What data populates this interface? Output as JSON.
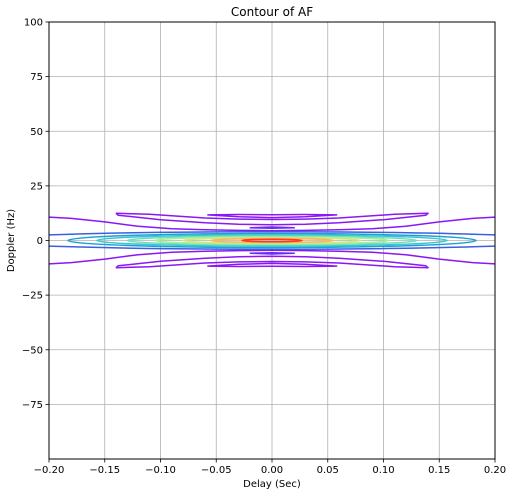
{
  "chart_data": {
    "type": "contour",
    "title": "Contour of AF",
    "xlabel": "Delay (Sec)",
    "ylabel": "Doppler (Hz)",
    "xlim": [
      -0.2,
      0.2
    ],
    "ylim": [
      -100,
      100
    ],
    "x_ticks": [
      -0.2,
      -0.15,
      -0.1,
      -0.05,
      0.0,
      0.05,
      0.1,
      0.15,
      0.2
    ],
    "x_tick_labels": [
      "−0.20",
      "−0.15",
      "−0.10",
      "−0.05",
      "0.00",
      "0.05",
      "0.10",
      "0.15",
      "0.20"
    ],
    "y_ticks": [
      -75,
      -50,
      -25,
      0,
      25,
      50,
      75,
      100
    ],
    "y_tick_labels": [
      "−75",
      "−50",
      "−25",
      "0",
      "25",
      "50",
      "75",
      "100"
    ],
    "grid": true,
    "colormap": "rainbow",
    "center_lobe": [
      {
        "half_width": 0.26,
        "half_height": 4.0,
        "color": "#3a5fe0"
      },
      {
        "half_width": 0.183,
        "half_height": 3.2,
        "color": "#1e9fd6"
      },
      {
        "half_width": 0.157,
        "half_height": 2.6,
        "color": "#38c6cf"
      },
      {
        "half_width": 0.13,
        "half_height": 2.0,
        "color": "#6de0bb"
      },
      {
        "half_width": 0.105,
        "half_height": 1.6,
        "color": "#a4f09c"
      },
      {
        "half_width": 0.08,
        "half_height": 1.2,
        "color": "#d2e87e"
      },
      {
        "half_width": 0.055,
        "half_height": 0.9,
        "color": "#ffb560"
      },
      {
        "half_width": 0.027,
        "half_height": 0.6,
        "color": "#ff3a1d"
      }
    ],
    "side_lobes": [
      {
        "points": [
          [
            -0.21,
            11
          ],
          [
            -0.18,
            10.1
          ],
          [
            -0.15,
            8.5
          ],
          [
            -0.12,
            6.5
          ],
          [
            -0.09,
            5.4
          ],
          [
            -0.06,
            4.9
          ],
          [
            -0.03,
            4.6
          ],
          [
            0.0,
            4.5
          ],
          [
            0.03,
            4.6
          ],
          [
            0.06,
            4.9
          ],
          [
            0.09,
            5.4
          ],
          [
            0.12,
            6.5
          ],
          [
            0.15,
            8.5
          ],
          [
            0.18,
            10.1
          ],
          [
            0.21,
            11
          ]
        ],
        "color": "#8a17f5"
      },
      {
        "points": [
          [
            -0.21,
            -11
          ],
          [
            -0.18,
            -10.1
          ],
          [
            -0.15,
            -8.5
          ],
          [
            -0.12,
            -6.5
          ],
          [
            -0.09,
            -5.4
          ],
          [
            -0.06,
            -4.9
          ],
          [
            -0.03,
            -4.6
          ],
          [
            0.0,
            -4.5
          ],
          [
            0.03,
            -4.6
          ],
          [
            0.06,
            -4.9
          ],
          [
            0.09,
            -5.4
          ],
          [
            0.12,
            -6.5
          ],
          [
            0.15,
            -8.5
          ],
          [
            0.18,
            -10.1
          ],
          [
            0.21,
            -11
          ]
        ],
        "color": "#8a17f5"
      },
      {
        "points": [
          [
            -0.14,
            12.5
          ],
          [
            -0.138,
            11.6
          ],
          [
            -0.1,
            9.5
          ],
          [
            -0.06,
            8.1
          ],
          [
            -0.03,
            7.4
          ],
          [
            0.0,
            7.2
          ],
          [
            0.03,
            7.4
          ],
          [
            0.06,
            8.1
          ],
          [
            0.1,
            9.5
          ],
          [
            0.138,
            11.6
          ],
          [
            0.14,
            12.5
          ],
          [
            0.11,
            12.0
          ],
          [
            0.06,
            10.3
          ],
          [
            0.03,
            9.8
          ],
          [
            0.0,
            9.6
          ],
          [
            -0.03,
            9.8
          ],
          [
            -0.06,
            10.3
          ],
          [
            -0.11,
            12.0
          ],
          [
            -0.14,
            12.5
          ]
        ],
        "color": "#8a17f5"
      },
      {
        "points": [
          [
            -0.14,
            -12.5
          ],
          [
            -0.138,
            -11.6
          ],
          [
            -0.1,
            -9.5
          ],
          [
            -0.06,
            -8.1
          ],
          [
            -0.03,
            -7.4
          ],
          [
            0.0,
            -7.2
          ],
          [
            0.03,
            -7.4
          ],
          [
            0.06,
            -8.1
          ],
          [
            0.1,
            -9.5
          ],
          [
            0.138,
            -11.6
          ],
          [
            0.14,
            -12.5
          ],
          [
            0.11,
            -12.0
          ],
          [
            0.06,
            -10.3
          ],
          [
            0.03,
            -9.8
          ],
          [
            0.0,
            -9.6
          ],
          [
            -0.03,
            -9.8
          ],
          [
            -0.06,
            -10.3
          ],
          [
            -0.11,
            -12.0
          ],
          [
            -0.14,
            -12.5
          ]
        ],
        "color": "#8a17f5"
      },
      {
        "points": [
          [
            -0.058,
            11.7
          ],
          [
            -0.03,
            10.9
          ],
          [
            0.0,
            10.5
          ],
          [
            0.03,
            10.9
          ],
          [
            0.058,
            11.7
          ],
          [
            0.03,
            11.9
          ],
          [
            0.0,
            11.8
          ],
          [
            -0.03,
            11.9
          ],
          [
            -0.058,
            11.7
          ]
        ],
        "color": "#8a17f5"
      },
      {
        "points": [
          [
            -0.058,
            -11.7
          ],
          [
            -0.03,
            -10.9
          ],
          [
            0.0,
            -10.5
          ],
          [
            0.03,
            -10.9
          ],
          [
            0.058,
            -11.7
          ],
          [
            0.03,
            -11.9
          ],
          [
            0.0,
            -11.8
          ],
          [
            -0.03,
            -11.9
          ],
          [
            -0.058,
            -11.7
          ]
        ],
        "color": "#8a17f5"
      },
      {
        "points": [
          [
            -0.02,
            5.8
          ],
          [
            0.0,
            5.6
          ],
          [
            0.02,
            5.8
          ],
          [
            0.0,
            6.2
          ],
          [
            -0.02,
            5.8
          ]
        ],
        "color": "#6a2cf5"
      },
      {
        "points": [
          [
            -0.02,
            -5.8
          ],
          [
            0.0,
            -5.6
          ],
          [
            0.02,
            -5.8
          ],
          [
            0.0,
            -6.2
          ],
          [
            -0.02,
            -5.8
          ]
        ],
        "color": "#6a2cf5"
      }
    ]
  }
}
